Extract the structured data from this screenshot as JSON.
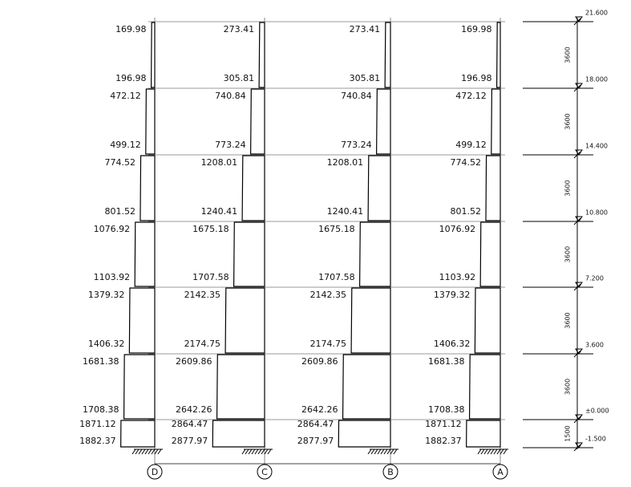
{
  "axes": [
    {
      "label": "D",
      "storeys": [
        [
          169.98,
          196.98
        ],
        [
          472.12,
          499.12
        ],
        [
          774.52,
          801.52
        ],
        [
          1076.92,
          1103.92
        ],
        [
          1379.32,
          1406.32
        ],
        [
          1681.38,
          1708.38
        ],
        [
          1871.12,
          1882.37
        ]
      ]
    },
    {
      "label": "C",
      "storeys": [
        [
          273.41,
          305.81
        ],
        [
          740.84,
          773.24
        ],
        [
          1208.01,
          1240.41
        ],
        [
          1675.18,
          1707.58
        ],
        [
          2142.35,
          2174.75
        ],
        [
          2609.86,
          2642.26
        ],
        [
          2864.47,
          2877.97
        ]
      ]
    },
    {
      "label": "B",
      "storeys": [
        [
          273.41,
          305.81
        ],
        [
          740.84,
          773.24
        ],
        [
          1208.01,
          1240.41
        ],
        [
          1675.18,
          1707.58
        ],
        [
          2142.35,
          2174.75
        ],
        [
          2609.86,
          2642.26
        ],
        [
          2864.47,
          2877.97
        ]
      ]
    },
    {
      "label": "A",
      "storeys": [
        [
          169.98,
          196.98
        ],
        [
          472.12,
          499.12
        ],
        [
          774.52,
          801.52
        ],
        [
          1076.92,
          1103.92
        ],
        [
          1379.32,
          1406.32
        ],
        [
          1681.38,
          1708.38
        ],
        [
          1871.12,
          1882.37
        ]
      ]
    }
  ],
  "levels": [
    "21.600",
    "18.000",
    "14.400",
    "10.800",
    "7.200",
    "3.600",
    "±0.000",
    "-1.500"
  ],
  "dimensions": [
    "3600",
    "3600",
    "3600",
    "3600",
    "3600",
    "3600",
    "1500"
  ]
}
